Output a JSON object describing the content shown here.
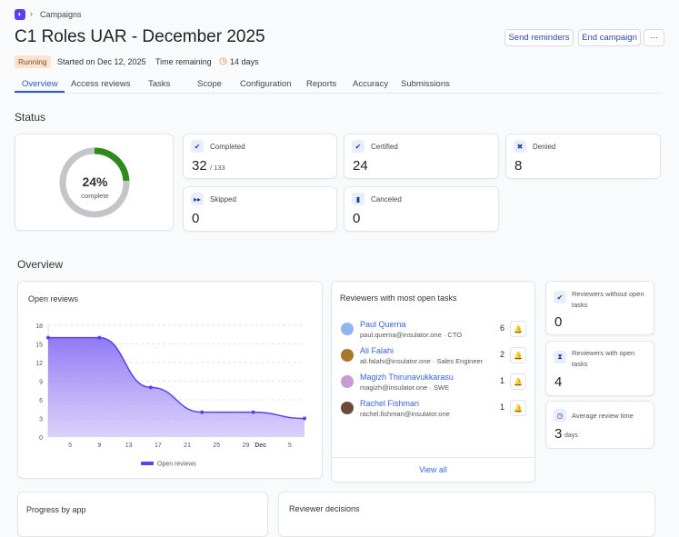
{
  "breadcrumb": {
    "item": "Campaigns"
  },
  "title": "C1 Roles UAR - December 2025",
  "actions": {
    "send_reminders": "Send reminders",
    "end_campaign": "End campaign",
    "more": "···"
  },
  "meta": {
    "status": "Running",
    "started": "Started on Dec 12, 2025",
    "time_label": "Time remaining",
    "time_value": "14 days"
  },
  "tabs": [
    "Overview",
    "Access reviews",
    "Tasks",
    "Scope",
    "Configuration",
    "Reports",
    "Accuracy",
    "Submissions"
  ],
  "status": {
    "heading": "Status",
    "percent": "24%",
    "percent_value": 24,
    "percent_label": "complete",
    "cards": {
      "completed": {
        "label": "Completed",
        "value": "32",
        "total": "/ 133"
      },
      "certified": {
        "label": "Certified",
        "value": "24"
      },
      "denied": {
        "label": "Denied",
        "value": "8"
      },
      "skipped": {
        "label": "Skipped",
        "value": "0"
      },
      "canceled": {
        "label": "Canceled",
        "value": "0"
      }
    },
    "colors": {
      "progress": "#2e8a1e",
      "track": "#c4c5c8"
    }
  },
  "overview": {
    "heading": "Overview",
    "reviewers": {
      "title": "Reviewers with most open tasks",
      "view_all": "View all",
      "items": [
        {
          "name": "Paul Querna",
          "sub": "paul.querna@insulator.one · CTO",
          "count": "6"
        },
        {
          "name": "Ali Falahi",
          "sub": "ali.falahi@insulator.one · Sales Engineer",
          "count": "2"
        },
        {
          "name": "Magizh Thirunavukkarasu",
          "sub": "magizh@insulator.one · SWE",
          "count": "1"
        },
        {
          "name": "Rachel Fishman",
          "sub": "rachel.fishman@insulator.one",
          "count": "1"
        }
      ]
    },
    "side": {
      "without": {
        "label": "Reviewers without open tasks",
        "value": "0"
      },
      "with": {
        "label": "Reviewers with open tasks",
        "value": "4"
      },
      "avg": {
        "label": "Average review time",
        "value": "3",
        "unit": "days"
      }
    },
    "progress_by_app": "Progress by app",
    "reviewer_decisions": "Reviewer decisions"
  },
  "chart_data": {
    "type": "area",
    "title": "Open reviews",
    "x": [
      "Nov 2",
      "Nov 9",
      "Nov 16",
      "Nov 23",
      "Nov 30",
      "Dec 7"
    ],
    "series": [
      {
        "name": "Open reviews",
        "values": [
          16,
          16,
          8,
          4,
          4,
          3
        ]
      }
    ],
    "yticks": [
      "0",
      "3",
      "6",
      "9",
      "12",
      "15",
      "18"
    ],
    "ylim": [
      0,
      18
    ],
    "xticks": [
      "5",
      "9",
      "13",
      "17",
      "21",
      "25",
      "29",
      "Dec",
      "5"
    ],
    "grid": true,
    "legend": "bottom",
    "color": "#5b3ff0"
  }
}
